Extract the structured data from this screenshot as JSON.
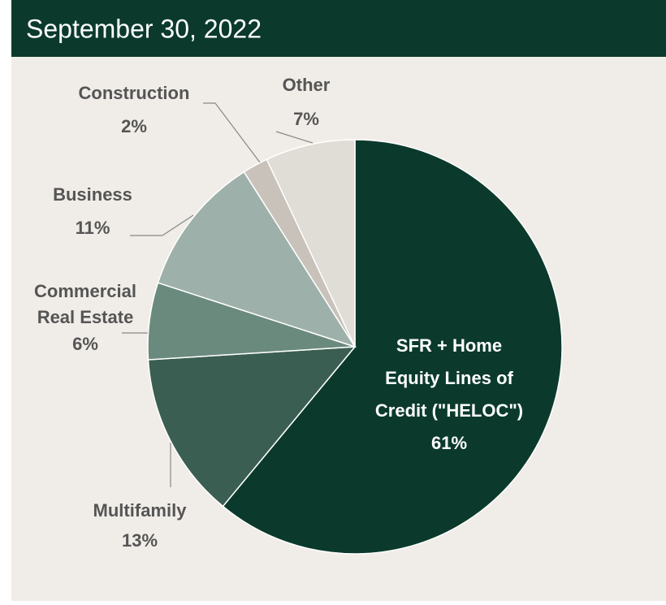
{
  "chart_data": {
    "type": "pie",
    "title": "September 30, 2022",
    "categories": [
      [
        "SFR + Home",
        "Equity Lines of",
        "Credit (\"HELOC\")"
      ],
      [
        "Multifamily"
      ],
      [
        "Commercial",
        "Real Estate"
      ],
      [
        "Business"
      ],
      [
        "Construction"
      ],
      [
        "Other"
      ]
    ],
    "values": [
      61,
      13,
      6,
      11,
      2,
      7
    ],
    "value_labels": [
      "61%",
      "13%",
      "6%",
      "11%",
      "2%",
      "7%"
    ],
    "colors": [
      "#0b3a2c",
      "#3b5e52",
      "#6b8a7e",
      "#9eb0aa",
      "#c8c2bb",
      "#e0dcd6"
    ]
  }
}
